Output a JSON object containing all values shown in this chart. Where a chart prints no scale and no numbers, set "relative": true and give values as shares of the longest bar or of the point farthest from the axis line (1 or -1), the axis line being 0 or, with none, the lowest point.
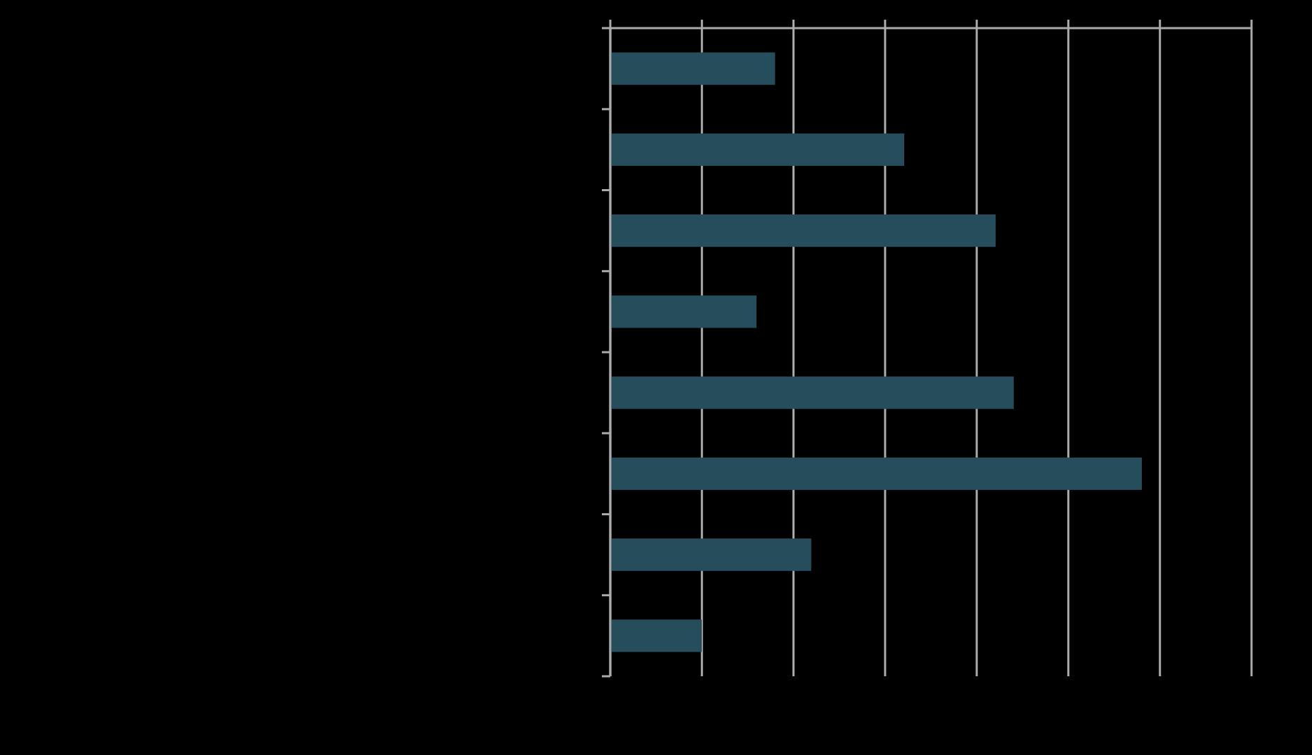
{
  "chart_data": {
    "type": "bar",
    "orientation": "horizontal",
    "relative": true,
    "categories": [
      null,
      null,
      null,
      null,
      null,
      null,
      null,
      null
    ],
    "values": [
      0.31,
      0.553,
      0.725,
      0.275,
      0.759,
      1,
      0.378,
      0.172
    ],
    "color": "#264d5c",
    "grid": "x"
  }
}
